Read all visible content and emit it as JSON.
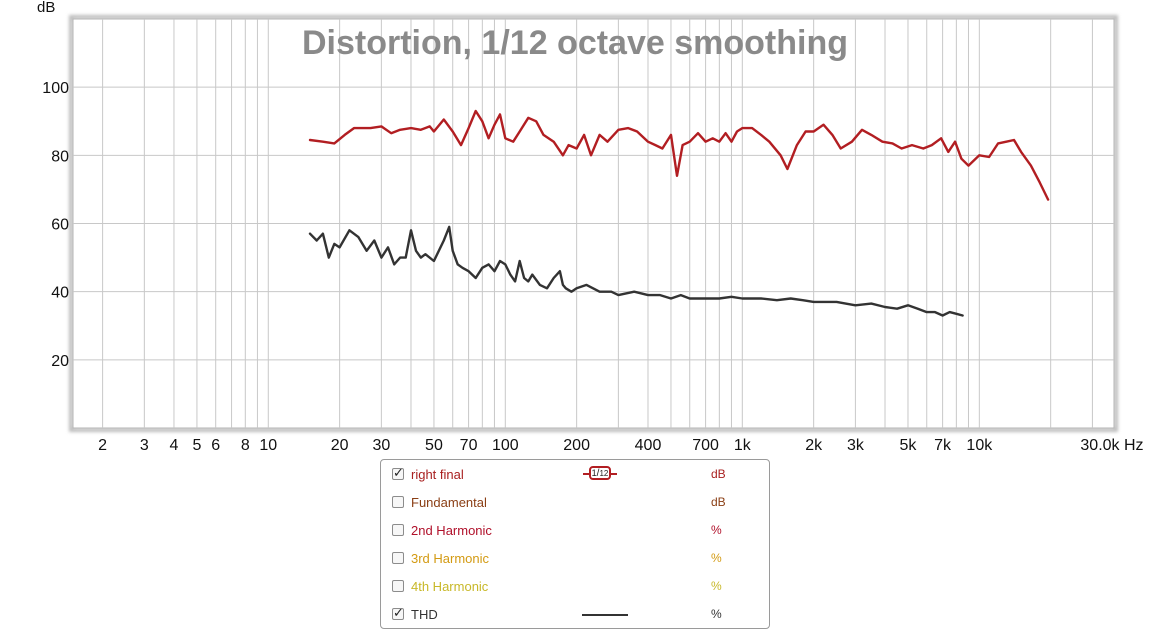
{
  "chart_data": {
    "type": "line",
    "title": "Distortion, 1/12 octave smoothing",
    "ylabel": "dB",
    "xunit": "Hz",
    "xscale": "log",
    "xlim": [
      1.5,
      37000
    ],
    "ylim": [
      0,
      120
    ],
    "grid": true,
    "y_ticks": [
      20,
      40,
      60,
      80,
      100
    ],
    "x_ticks": [
      {
        "v": 2,
        "label": "2"
      },
      {
        "v": 3,
        "label": "3"
      },
      {
        "v": 4,
        "label": "4"
      },
      {
        "v": 5,
        "label": "5"
      },
      {
        "v": 6,
        "label": "6"
      },
      {
        "v": 8,
        "label": "8"
      },
      {
        "v": 10,
        "label": "10"
      },
      {
        "v": 20,
        "label": "20"
      },
      {
        "v": 30,
        "label": "30"
      },
      {
        "v": 50,
        "label": "50"
      },
      {
        "v": 70,
        "label": "70"
      },
      {
        "v": 100,
        "label": "100"
      },
      {
        "v": 200,
        "label": "200"
      },
      {
        "v": 400,
        "label": "400"
      },
      {
        "v": 700,
        "label": "700"
      },
      {
        "v": 1000,
        "label": "1k"
      },
      {
        "v": 2000,
        "label": "2k"
      },
      {
        "v": 3000,
        "label": "3k"
      },
      {
        "v": 5000,
        "label": "5k"
      },
      {
        "v": 7000,
        "label": "7k"
      },
      {
        "v": 10000,
        "label": "10k"
      },
      {
        "v": 30000,
        "label": "30.0k Hz"
      }
    ],
    "series": [
      {
        "name": "right final",
        "color": "#b21e22",
        "x": [
          15,
          17,
          19,
          21,
          23,
          27,
          30,
          33,
          36,
          40,
          44,
          48,
          50,
          55,
          60,
          65,
          70,
          75,
          80,
          85,
          90,
          95,
          100,
          108,
          115,
          125,
          135,
          145,
          160,
          175,
          185,
          200,
          215,
          230,
          250,
          270,
          300,
          330,
          360,
          400,
          430,
          460,
          500,
          530,
          560,
          600,
          650,
          700,
          750,
          800,
          850,
          900,
          950,
          1000,
          1100,
          1200,
          1300,
          1450,
          1550,
          1700,
          1850,
          2000,
          2200,
          2400,
          2600,
          2900,
          3200,
          3500,
          3900,
          4300,
          4700,
          5200,
          5800,
          6300,
          6900,
          7400,
          7900,
          8400,
          9000,
          10000,
          11000,
          12000,
          13000,
          14000,
          15000,
          16500,
          18000,
          19500
        ],
        "y": [
          84.5,
          84,
          83.5,
          86,
          88,
          88,
          88.5,
          86.5,
          87.5,
          88,
          87.5,
          88.5,
          87,
          90.5,
          87,
          83,
          88,
          93,
          90,
          85,
          89,
          92,
          85,
          84,
          87,
          91,
          90,
          86,
          84,
          80,
          83,
          82,
          86,
          80,
          86,
          84,
          87.5,
          88,
          87,
          84,
          83,
          82,
          86,
          74,
          83,
          84,
          86.5,
          84,
          85,
          84,
          86.5,
          84,
          87,
          88,
          88,
          86,
          84,
          80,
          76,
          83,
          87,
          87,
          89,
          86,
          82,
          84,
          87.5,
          86,
          84,
          83.5,
          82,
          83,
          82,
          83,
          85,
          81,
          84,
          79,
          77,
          80,
          79.5,
          83.5,
          84,
          84.5,
          81,
          77,
          72,
          67
        ]
      },
      {
        "name": "THD",
        "color": "#333333",
        "x": [
          15,
          16,
          17,
          18,
          19,
          20,
          22,
          24,
          26,
          28,
          30,
          32,
          34,
          36,
          38,
          40,
          42,
          44,
          46,
          50,
          55,
          58,
          60,
          63,
          66,
          70,
          75,
          80,
          85,
          90,
          95,
          100,
          105,
          110,
          115,
          120,
          125,
          130,
          140,
          150,
          160,
          170,
          175,
          180,
          190,
          200,
          220,
          250,
          280,
          300,
          350,
          400,
          450,
          500,
          550,
          600,
          700,
          800,
          900,
          1000,
          1200,
          1400,
          1600,
          1800,
          2000,
          2500,
          3000,
          3500,
          4000,
          4500,
          5000,
          5500,
          6000,
          6500,
          7000,
          7500,
          8000,
          8500
        ],
        "y": [
          57,
          55,
          57,
          50,
          54,
          53,
          58,
          56,
          52,
          55,
          50,
          53,
          48,
          50,
          50,
          58,
          52,
          50,
          51,
          49,
          55,
          59,
          52,
          48,
          47,
          46,
          44,
          47,
          48,
          46,
          49,
          48,
          45,
          43,
          49,
          44,
          43,
          45,
          42,
          41,
          44,
          46,
          42,
          41,
          40,
          41,
          42,
          40,
          40,
          39,
          40,
          39,
          39,
          38,
          39,
          38,
          38,
          38,
          38.5,
          38,
          38,
          37.5,
          38,
          37.5,
          37,
          37,
          36,
          36.5,
          35.5,
          35,
          36,
          35,
          34,
          34,
          33,
          34,
          33.5,
          33
        ]
      }
    ]
  },
  "legend": [
    {
      "label": "right final",
      "checked": true,
      "unit": "dB",
      "color": "#a81f1f",
      "unit_color": "#a81f1f",
      "badge_num": "1",
      "badge_den": "12"
    },
    {
      "label": "Fundamental",
      "checked": false,
      "unit": "dB",
      "color": "#8a3e14",
      "unit_color": "#8a3e14"
    },
    {
      "label": "2nd Harmonic",
      "checked": false,
      "unit": "%",
      "color": "#b0102a",
      "unit_color": "#b0102a"
    },
    {
      "label": "3rd Harmonic",
      "checked": false,
      "unit": "%",
      "color": "#d39a12",
      "unit_color": "#d39a12"
    },
    {
      "label": "4th Harmonic",
      "checked": false,
      "unit": "%",
      "color": "#c8b828",
      "unit_color": "#c8b828"
    },
    {
      "label": "THD",
      "checked": true,
      "unit": "%",
      "color": "#333333",
      "unit_color": "#333333"
    }
  ],
  "checkmark": "✓"
}
